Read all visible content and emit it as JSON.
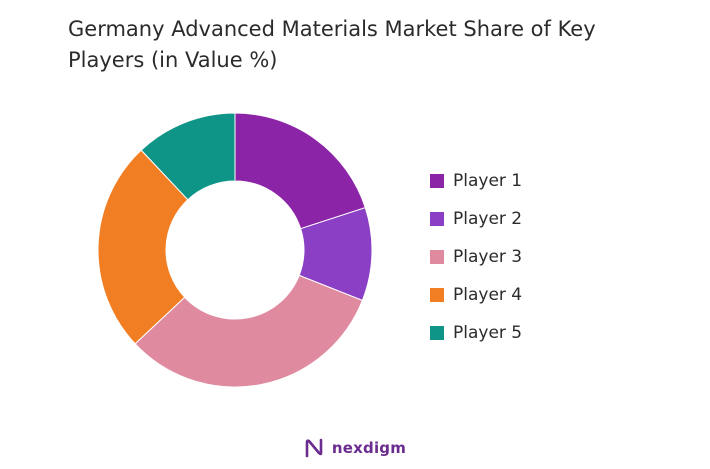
{
  "chart_data": {
    "type": "pie",
    "title": "Germany Advanced Materials Market Share of Key Players (in Value %)",
    "categories": [
      "Player 1",
      "Player 2",
      "Player 3",
      "Player 4",
      "Player 5"
    ],
    "values": [
      20,
      11,
      32,
      25,
      12
    ],
    "colors": [
      "#8c24a8",
      "#8b3fc4",
      "#e08aa0",
      "#f27e24",
      "#0e9587"
    ],
    "donut": true,
    "legend_position": "right"
  },
  "brand": {
    "name": "nexdigm"
  }
}
